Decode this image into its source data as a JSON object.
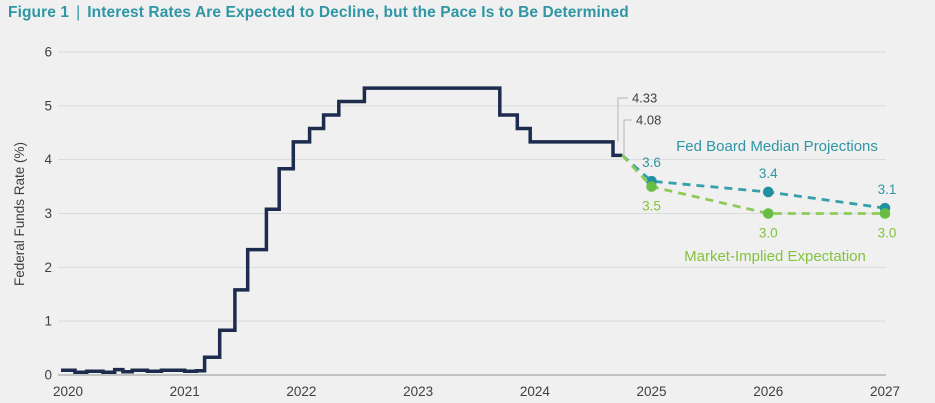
{
  "title": {
    "figure_label": "Figure 1",
    "separator": "|",
    "text": "Interest Rates Are Expected to Decline, but the Pace Is to Be Determined"
  },
  "colors": {
    "background": "#eff0ef",
    "title_teal": "#2e96a4",
    "navy": "#1d2c4e",
    "grid": "#dadbdc",
    "axis": "#a7a9ab",
    "tick_text": "#404040",
    "annotation_text": "#3f3f3f",
    "connector": "#b3b6b9"
  },
  "chart_data": {
    "type": "line",
    "title": "Interest Rates Are Expected to Decline, but the Pace Is to Be Determined",
    "xlabel": "",
    "ylabel": "Federal Funds Rate (%)",
    "xlim": [
      2019.9,
      2027.1
    ],
    "ylim": [
      0,
      6
    ],
    "x_ticks": [
      "2020",
      "2021",
      "2022",
      "2023",
      "2024",
      "2025",
      "2026",
      "2027"
    ],
    "y_ticks": [
      0,
      1,
      2,
      3,
      4,
      5,
      6
    ],
    "grid": "horizontal",
    "legend_position": "inline-labels",
    "series": [
      {
        "name": "Federal Funds Rate (historical)",
        "style": "step",
        "color": "#1d2c4e",
        "points": [
          [
            2019.94,
            0.09
          ],
          [
            2020.06,
            0.05
          ],
          [
            2020.16,
            0.07
          ],
          [
            2020.3,
            0.05
          ],
          [
            2020.4,
            0.1
          ],
          [
            2020.47,
            0.06
          ],
          [
            2020.55,
            0.09
          ],
          [
            2020.68,
            0.07
          ],
          [
            2020.8,
            0.09
          ],
          [
            2021.0,
            0.07
          ],
          [
            2021.1,
            0.08
          ],
          [
            2021.17,
            0.33
          ],
          [
            2021.3,
            0.83
          ],
          [
            2021.43,
            1.58
          ],
          [
            2021.54,
            2.33
          ],
          [
            2021.7,
            3.08
          ],
          [
            2021.81,
            3.83
          ],
          [
            2021.93,
            4.33
          ],
          [
            2022.07,
            4.58
          ],
          [
            2022.19,
            4.83
          ],
          [
            2022.32,
            5.08
          ],
          [
            2022.54,
            5.33
          ],
          [
            2023.7,
            4.83
          ],
          [
            2023.85,
            4.58
          ],
          [
            2023.96,
            4.33
          ],
          [
            2024.67,
            4.08
          ],
          [
            2024.75,
            4.08
          ]
        ]
      },
      {
        "name": "Fed Board Median Projections",
        "style": "dashed",
        "dash_color": "#35a0ab",
        "dot_color": "#1f91a3",
        "text_color": "#2e96a4",
        "points": [
          [
            2024.75,
            4.08
          ],
          [
            2025,
            3.6
          ],
          [
            2026,
            3.4
          ],
          [
            2027,
            3.1
          ]
        ],
        "point_labels": [
          {
            "text": "3.6",
            "year": 2025,
            "value": 3.6,
            "placement": "above"
          },
          {
            "text": "3.4",
            "year": 2026,
            "value": 3.4,
            "placement": "above"
          },
          {
            "text": "3.1",
            "year": 2027,
            "value": 3.1,
            "placement": "above"
          }
        ]
      },
      {
        "name": "Market-Implied Expectation",
        "style": "dashed",
        "dash_color": "#8fc958",
        "dot_color": "#68bd44",
        "text_color": "#84c33d",
        "points": [
          [
            2024.75,
            4.08
          ],
          [
            2025,
            3.5
          ],
          [
            2026,
            3.0
          ],
          [
            2027,
            3.0
          ]
        ],
        "point_labels": [
          {
            "text": "3.5",
            "year": 2025,
            "value": 3.5,
            "placement": "below"
          },
          {
            "text": "3.0",
            "year": 2026,
            "value": 3.0,
            "placement": "below"
          },
          {
            "text": "3.0",
            "year": 2027,
            "value": 3.0,
            "placement": "below"
          }
        ]
      }
    ],
    "annotations": [
      {
        "text": "4.33",
        "value": 4.33
      },
      {
        "text": "4.08",
        "value": 4.08
      }
    ]
  }
}
